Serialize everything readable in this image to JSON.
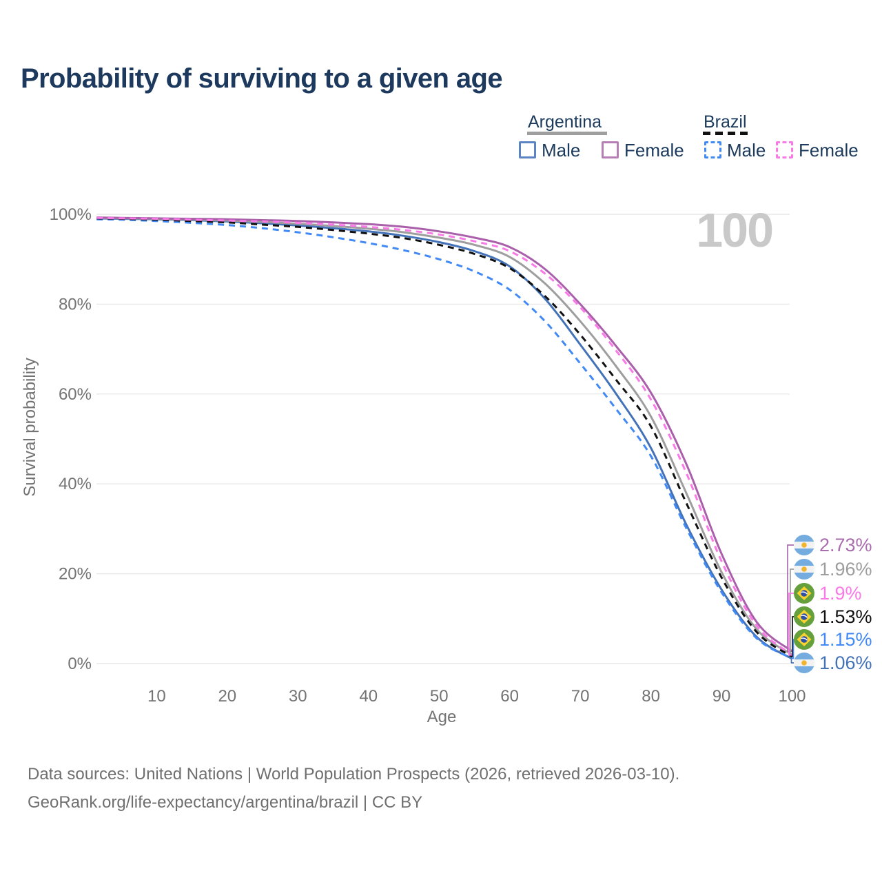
{
  "page": {
    "title": "Probability of surviving to a given age"
  },
  "legend": {
    "groups": [
      {
        "label": "Argentina",
        "line_color": "#9e9e9e",
        "line_style": "solid",
        "items": [
          {
            "label": "Male",
            "color": "#5b84c4",
            "style": "solid"
          },
          {
            "label": "Female",
            "color": "#b57fb5",
            "style": "solid"
          }
        ]
      },
      {
        "label": "Brazil",
        "line_color": "#111111",
        "line_style": "dashed",
        "items": [
          {
            "label": "Male",
            "color": "#4189f5",
            "style": "dashed"
          },
          {
            "label": "Female",
            "color": "#f97ae6",
            "style": "dashed"
          }
        ]
      }
    ]
  },
  "chart_data": {
    "type": "line",
    "title": "Probability of surviving to a given age",
    "xlabel": "Age",
    "ylabel": "Survival probability",
    "xlim": [
      0,
      100
    ],
    "ylim": [
      0,
      100
    ],
    "x_ticks": [
      10,
      20,
      30,
      40,
      50,
      60,
      70,
      80,
      90,
      100
    ],
    "y_ticks": [
      0,
      20,
      40,
      60,
      80,
      100
    ],
    "y_tick_suffix": "%",
    "grid": "horizontal",
    "grid_color": "#e8e8e8",
    "age_indicator": "100",
    "x": [
      1.5,
      5,
      10,
      15,
      20,
      25,
      30,
      35,
      40,
      45,
      50,
      55,
      60,
      65,
      70,
      75,
      80,
      85,
      90,
      95,
      100
    ],
    "series": [
      {
        "name": "Argentina Male",
        "country": "Argentina",
        "sex": "male",
        "color": "#4372b8",
        "dashed": false,
        "final_label": "1.06%",
        "values": [
          99.1,
          99.0,
          98.9,
          98.7,
          98.4,
          98.0,
          97.5,
          96.9,
          96.2,
          95.2,
          93.8,
          91.8,
          88.4,
          81.2,
          71.0,
          60.2,
          48.0,
          31.0,
          16.5,
          5.9,
          1.06
        ]
      },
      {
        "name": "Brazil Male",
        "country": "Brazil",
        "sex": "male",
        "color": "#4189f5",
        "dashed": true,
        "final_label": "1.15%",
        "values": [
          98.9,
          98.8,
          98.5,
          98.1,
          97.6,
          96.9,
          96.0,
          94.9,
          93.6,
          92.0,
          90.0,
          87.3,
          83.2,
          76.2,
          66.8,
          56.8,
          46.2,
          30.2,
          15.9,
          5.6,
          1.15
        ]
      },
      {
        "name": "Argentina",
        "country": "Argentina",
        "sex": "both",
        "color": "#9e9e9e",
        "dashed": false,
        "final_label": "1.96%",
        "values": [
          99.2,
          99.1,
          99.0,
          98.8,
          98.6,
          98.3,
          97.9,
          97.4,
          96.8,
          96.0,
          94.8,
          93.2,
          90.5,
          84.6,
          76.2,
          66.3,
          55.0,
          38.0,
          20.4,
          7.6,
          1.96
        ]
      },
      {
        "name": "Brazil",
        "country": "Brazil",
        "sex": "both",
        "color": "#111111",
        "dashed": true,
        "final_label": "1.53%",
        "values": [
          99.1,
          99.0,
          98.8,
          98.5,
          98.2,
          97.7,
          97.2,
          96.5,
          95.7,
          94.7,
          93.2,
          91.2,
          88.0,
          81.8,
          73.2,
          63.3,
          52.8,
          35.8,
          19.2,
          7.0,
          1.53
        ]
      },
      {
        "name": "Argentina Female",
        "country": "Argentina",
        "sex": "female",
        "color": "#a95fa9",
        "dashed": false,
        "final_label": "2.73%",
        "values": [
          99.3,
          99.2,
          99.1,
          99.0,
          98.9,
          98.7,
          98.5,
          98.2,
          97.8,
          97.2,
          96.2,
          94.8,
          92.7,
          87.8,
          80.0,
          70.8,
          60.3,
          44.5,
          24.5,
          9.2,
          2.73
        ]
      },
      {
        "name": "Brazil Female",
        "country": "Brazil",
        "sex": "female",
        "color": "#f97ae6",
        "dashed": true,
        "final_label": "1.9%",
        "values": [
          99.2,
          99.1,
          99.0,
          98.8,
          98.6,
          98.4,
          98.1,
          97.7,
          97.2,
          96.5,
          95.5,
          94.0,
          91.8,
          86.8,
          79.3,
          69.8,
          58.8,
          42.5,
          22.8,
          8.4,
          1.9
        ]
      }
    ],
    "end_labels": [
      {
        "flag": "argentina",
        "series": "Argentina Female",
        "value": "2.73%",
        "color": "#a96cae"
      },
      {
        "flag": "argentina",
        "series": "Argentina",
        "value": "1.96%",
        "color": "#9e9e9e"
      },
      {
        "flag": "brazil",
        "series": "Brazil Female",
        "value": "1.9%",
        "color": "#f97ae6"
      },
      {
        "flag": "brazil",
        "series": "Brazil",
        "value": "1.53%",
        "color": "#111111"
      },
      {
        "flag": "brazil",
        "series": "Brazil Male",
        "value": "1.15%",
        "color": "#4189f5"
      },
      {
        "flag": "argentina",
        "series": "Argentina Male",
        "value": "1.06%",
        "color": "#4372b8"
      }
    ]
  },
  "footer": {
    "line1": "Data sources: United Nations | World Population Prospects (2026, retrieved 2026-03-10).",
    "line2": "GeoRank.org/life-expectancy/argentina/brazil | CC BY"
  }
}
